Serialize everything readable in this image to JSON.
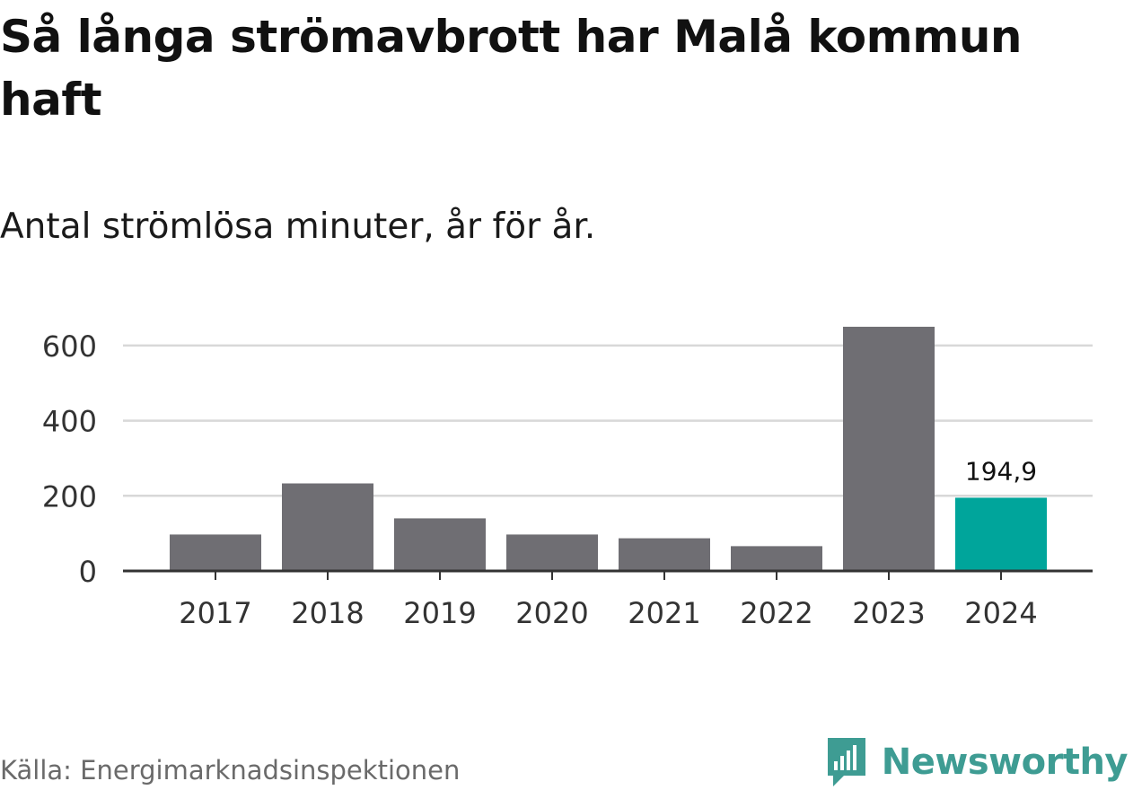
{
  "title": "Så långa strömavbrott har Malå kommun haft",
  "subtitle": "Antal strömlösa minuter, år för år.",
  "source": "Källa: Energimarknadsinspektionen",
  "brand": {
    "name": "Newsworthy",
    "logo_icon": "newsworthy-bar-chart-speech-bubble-icon"
  },
  "colors": {
    "bar_default": "#6f6e73",
    "bar_highlight": "#00a59b",
    "grid": "#d8d8d8",
    "axis": "#333333",
    "brand": "#3e9c93"
  },
  "chart_data": {
    "type": "bar",
    "title": "Så långa strömavbrott har Malå kommun haft",
    "subtitle": "Antal strömlösa minuter, år för år.",
    "xlabel": "",
    "ylabel": "",
    "categories": [
      "2017",
      "2018",
      "2019",
      "2020",
      "2021",
      "2022",
      "2023",
      "2024"
    ],
    "values": [
      97,
      233,
      140,
      97,
      87,
      66,
      650,
      194.9
    ],
    "highlight_index": 7,
    "data_labels": [
      {
        "index": 7,
        "text": "194,9"
      }
    ],
    "yticks": [
      0,
      200,
      400,
      600
    ],
    "ytick_labels": [
      "0",
      "200",
      "400",
      "600"
    ],
    "ylim": [
      0,
      650
    ],
    "grid": true,
    "legend": "none"
  }
}
